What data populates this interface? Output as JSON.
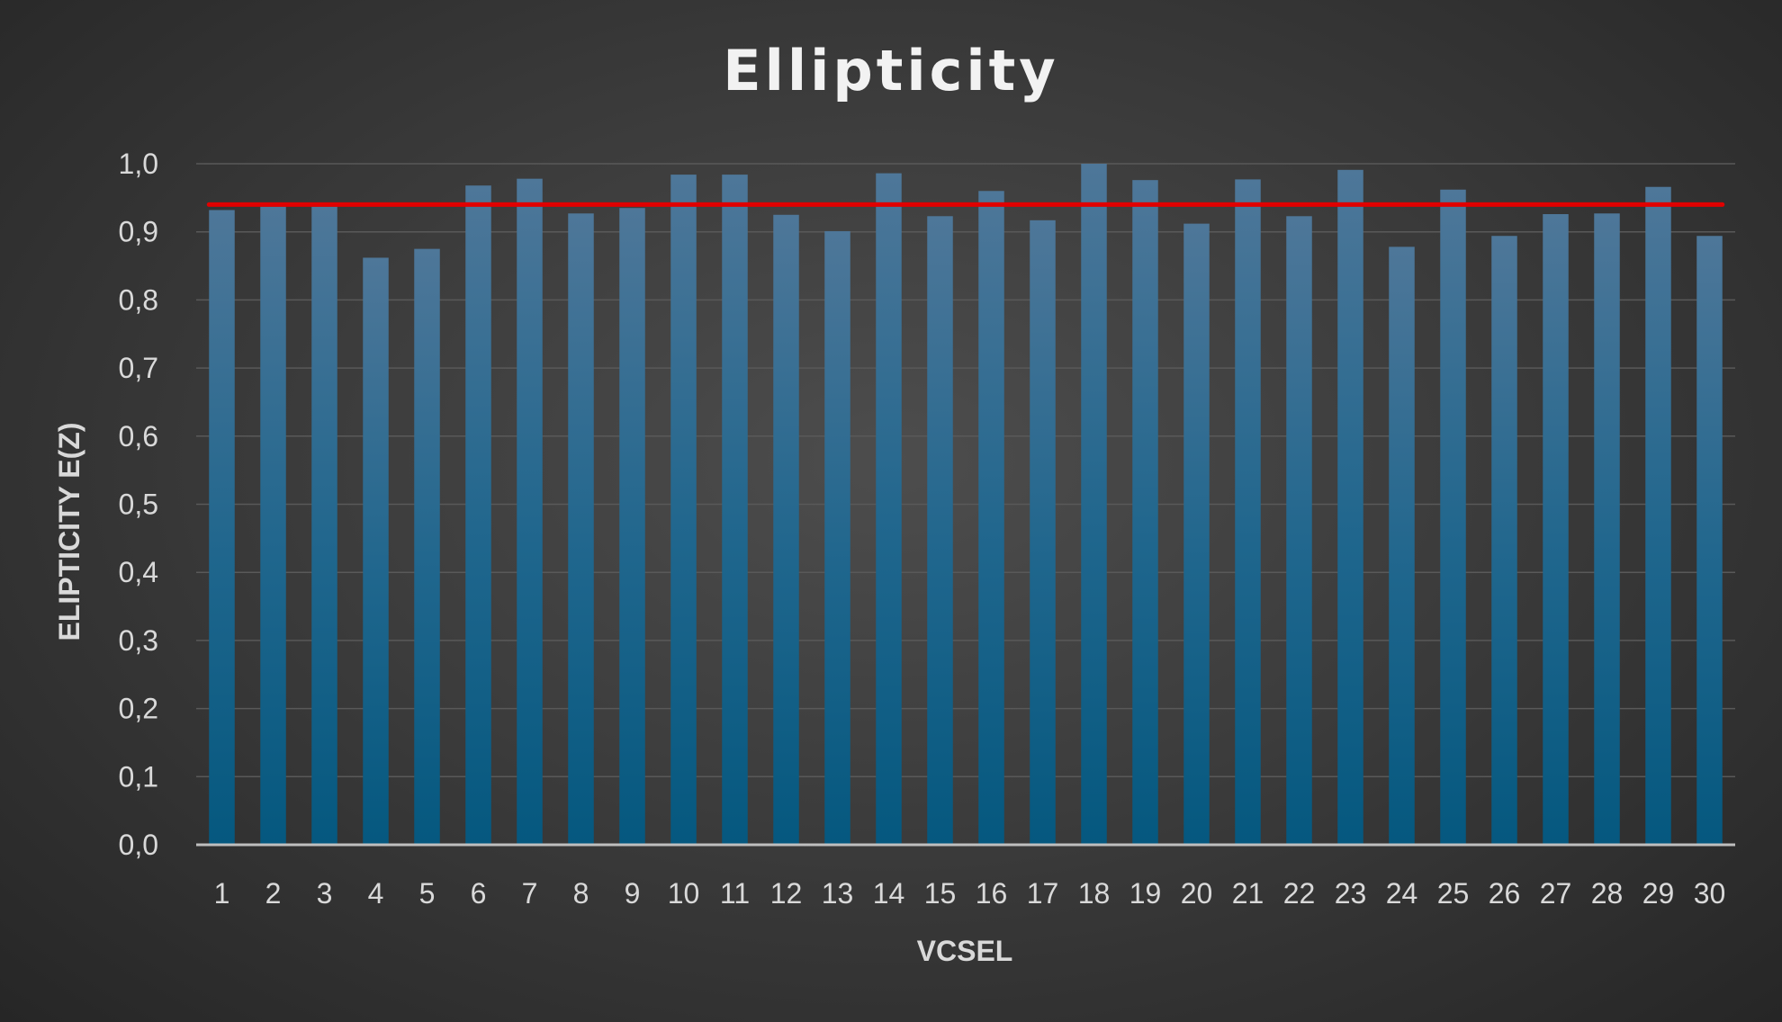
{
  "chart_data": {
    "type": "bar",
    "title": "Ellipticity",
    "xlabel": "VCSEL",
    "ylabel": "ELIPTICITY E(Z)",
    "ylim": [
      0.0,
      1.0
    ],
    "yticks": [
      "0,0",
      "0,1",
      "0,2",
      "0,3",
      "0,4",
      "0,5",
      "0,6",
      "0,7",
      "0,8",
      "0,9",
      "1,0"
    ],
    "categories": [
      "1",
      "2",
      "3",
      "4",
      "5",
      "6",
      "7",
      "8",
      "9",
      "10",
      "11",
      "12",
      "13",
      "14",
      "15",
      "16",
      "17",
      "18",
      "19",
      "20",
      "21",
      "22",
      "23",
      "24",
      "25",
      "26",
      "27",
      "28",
      "29",
      "30"
    ],
    "values": [
      0.932,
      0.937,
      0.937,
      0.862,
      0.875,
      0.968,
      0.978,
      0.927,
      0.935,
      0.984,
      0.984,
      0.925,
      0.901,
      0.986,
      0.923,
      0.96,
      0.917,
      1.0,
      0.976,
      0.912,
      0.977,
      0.923,
      0.991,
      0.878,
      0.962,
      0.894,
      0.926,
      0.927,
      0.966,
      0.894
    ],
    "reference_line": {
      "value": 0.94
    },
    "grid": true,
    "legend": "none",
    "colors": {
      "bar_top": "#4e7799",
      "bar_bottom": "#05587f",
      "reference_line": "#e00000",
      "text": "#d9d9d9"
    }
  }
}
